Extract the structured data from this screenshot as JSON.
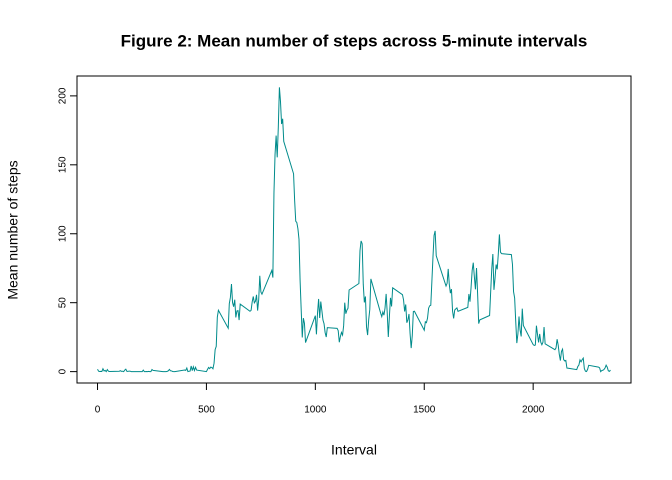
{
  "chart_data": {
    "type": "line",
    "title": "Figure 2: Mean number of steps across 5-minute intervals",
    "xlabel": "Interval",
    "ylabel": "Mean number of steps",
    "color": "#008b8b",
    "xlim": [
      -94.2,
      2449.2
    ],
    "xticks": [
      0,
      500,
      1000,
      1500,
      2000
    ],
    "ylim": [
      -8.25,
      214.42
    ],
    "yticks": [
      0,
      50,
      100,
      150,
      200
    ],
    "x": [
      0,
      5,
      10,
      15,
      20,
      25,
      30,
      35,
      40,
      45,
      50,
      55,
      100,
      105,
      110,
      115,
      120,
      125,
      130,
      135,
      140,
      145,
      150,
      155,
      200,
      205,
      210,
      215,
      220,
      225,
      230,
      235,
      240,
      245,
      250,
      255,
      300,
      305,
      310,
      315,
      320,
      325,
      330,
      335,
      340,
      345,
      350,
      355,
      400,
      405,
      410,
      415,
      420,
      425,
      430,
      435,
      440,
      445,
      450,
      455,
      500,
      505,
      510,
      515,
      520,
      525,
      530,
      535,
      540,
      545,
      550,
      555,
      600,
      605,
      610,
      615,
      620,
      625,
      630,
      635,
      640,
      645,
      650,
      655,
      700,
      705,
      710,
      715,
      720,
      725,
      730,
      735,
      740,
      745,
      750,
      755,
      800,
      805,
      810,
      815,
      820,
      825,
      830,
      835,
      840,
      845,
      850,
      855,
      900,
      905,
      910,
      915,
      920,
      925,
      930,
      935,
      940,
      945,
      950,
      955,
      1000,
      1005,
      1010,
      1015,
      1020,
      1025,
      1030,
      1035,
      1040,
      1045,
      1050,
      1055,
      1100,
      1105,
      1110,
      1115,
      1120,
      1125,
      1130,
      1135,
      1140,
      1145,
      1150,
      1155,
      1200,
      1205,
      1210,
      1215,
      1220,
      1225,
      1230,
      1235,
      1240,
      1245,
      1250,
      1255,
      1300,
      1305,
      1310,
      1315,
      1320,
      1325,
      1330,
      1335,
      1340,
      1345,
      1350,
      1355,
      1400,
      1405,
      1410,
      1415,
      1420,
      1425,
      1430,
      1435,
      1440,
      1445,
      1450,
      1455,
      1500,
      1505,
      1510,
      1515,
      1520,
      1525,
      1530,
      1535,
      1540,
      1545,
      1550,
      1555,
      1600,
      1605,
      1610,
      1615,
      1620,
      1625,
      1630,
      1635,
      1640,
      1645,
      1650,
      1655,
      1700,
      1705,
      1710,
      1715,
      1720,
      1725,
      1730,
      1735,
      1740,
      1745,
      1750,
      1755,
      1800,
      1805,
      1810,
      1815,
      1820,
      1825,
      1830,
      1835,
      1840,
      1845,
      1850,
      1855,
      1900,
      1905,
      1910,
      1915,
      1920,
      1925,
      1930,
      1935,
      1940,
      1945,
      1950,
      1955,
      2000,
      2005,
      2010,
      2015,
      2020,
      2025,
      2030,
      2035,
      2040,
      2045,
      2050,
      2055,
      2100,
      2105,
      2110,
      2115,
      2120,
      2125,
      2130,
      2135,
      2140,
      2145,
      2150,
      2155,
      2200,
      2205,
      2210,
      2215,
      2220,
      2225,
      2230,
      2235,
      2240,
      2245,
      2250,
      2255,
      2300,
      2305,
      2310,
      2315,
      2320,
      2325,
      2330,
      2335,
      2340,
      2345,
      2350,
      2355
    ],
    "values": [
      1.7,
      0.3,
      0.1,
      0.2,
      0.1,
      2.1,
      0.5,
      0.9,
      0,
      1.5,
      0.3,
      0.1,
      0.3,
      0.7,
      0.2,
      0.3,
      0,
      1.1,
      1.8,
      0.2,
      0.2,
      0.4,
      0.3,
      0,
      0,
      0,
      1.1,
      0,
      0,
      0.1,
      0,
      0.2,
      0,
      0,
      1.5,
      0.9,
      0,
      0,
      0,
      0,
      0.2,
      0.6,
      1.6,
      0.6,
      0.5,
      0.1,
      0,
      0,
      1.2,
      0.9,
      2.6,
      0,
      0.3,
      0.4,
      4.1,
      0.7,
      3.5,
      0.8,
      3.1,
      1.1,
      0,
      1.6,
      3,
      2.2,
      3.3,
      3,
      2.1,
      6.1,
      16,
      18.3,
      39.5,
      44.5,
      31.5,
      49.3,
      53.8,
      63.5,
      50,
      47.1,
      52.2,
      39.3,
      44,
      44.2,
      37.4,
      49,
      43.8,
      44.4,
      50.5,
      54.5,
      49.9,
      51,
      55.7,
      44.3,
      52.3,
      69.5,
      57.8,
      56.2,
      73.4,
      68.2,
      129.4,
      157.5,
      171.2,
      155.4,
      177.3,
      206.2,
      195.9,
      179.6,
      183.4,
      167,
      143.5,
      124,
      109.1,
      108.1,
      103.7,
      96,
      66.2,
      45.2,
      24.8,
      38.8,
      35,
      21.1,
      40.6,
      27,
      42.4,
      52.7,
      38.9,
      50.8,
      44.3,
      37.4,
      34.7,
      28.3,
      25.1,
      31.9,
      31.4,
      29.7,
      21.3,
      25.5,
      28.4,
      26.5,
      33.4,
      50,
      42,
      44.6,
      46,
      59.2,
      63.9,
      87.7,
      94.8,
      92.8,
      63.4,
      50.2,
      54.5,
      32.4,
      26.5,
      37.7,
      45.1,
      67.3,
      42.3,
      39.9,
      43.3,
      40.9,
      46.2,
      56.4,
      42.8,
      25.1,
      40,
      53.5,
      47.3,
      60.8,
      55.8,
      52,
      43.6,
      48.7,
      35.5,
      37.5,
      41.8,
      27.5,
      17.1,
      26.1,
      43.6,
      43.8,
      30,
      36.1,
      35.5,
      38.8,
      46,
      47.8,
      48.1,
      65.3,
      82.9,
      98.7,
      102.1,
      84,
      62.1,
      64.1,
      74.5,
      63.2,
      56.9,
      59.8,
      43.9,
      38.6,
      44.7,
      45.5,
      46.2,
      43.7,
      46.6,
      56.3,
      50.7,
      61.2,
      73.4,
      79,
      68.9,
      59.7,
      75.1,
      56.5,
      34.8,
      37.5,
      40.7,
      58,
      74.7,
      85.3,
      59.3,
      67.8,
      77.7,
      74.2,
      85.3,
      99.5,
      86.6,
      85.6,
      84.9,
      77.8,
      58,
      53.4,
      36.3,
      20.7,
      27.4,
      40,
      30.2,
      25.5,
      45.7,
      33.5,
      19.6,
      19,
      19.3,
      33.3,
      26.8,
      21.2,
      27.3,
      21.3,
      19.5,
      21.3,
      32.3,
      20.2,
      15.9,
      17.2,
      23.5,
      19.2,
      12.5,
      8,
      14.7,
      16.3,
      8.7,
      7.8,
      8.1,
      2.6,
      1.5,
      3.7,
      4.8,
      8.5,
      7.1,
      8.7,
      9.8,
      2.2,
      0.3,
      0.1,
      1.6,
      4.6,
      3.3,
      2.8,
      0,
      0.8,
      1,
      1.5,
      2.6,
      4.7,
      3.3,
      0.6,
      0.2,
      1.1
    ]
  }
}
